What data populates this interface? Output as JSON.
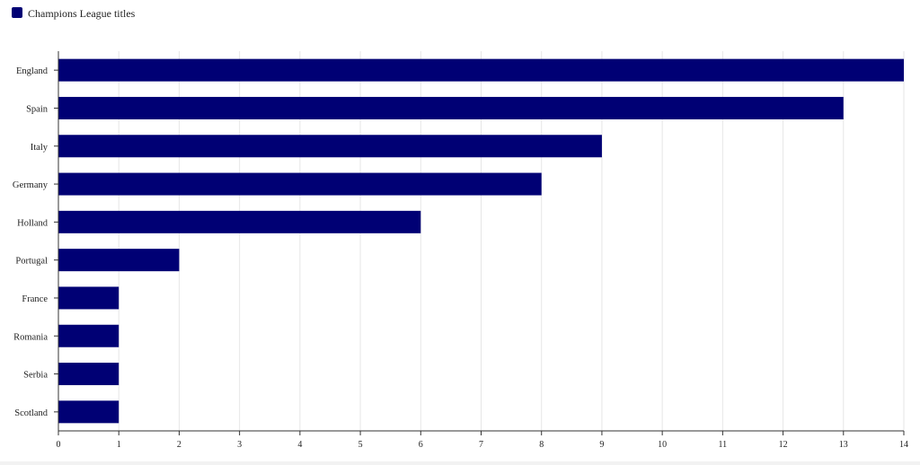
{
  "colors": {
    "bar": "#000074",
    "grid": "#e6e6e6",
    "axis": "#333333",
    "background": "#ffffff"
  },
  "chart_data": {
    "type": "bar",
    "orientation": "horizontal",
    "categories": [
      "England",
      "Spain",
      "Italy",
      "Germany",
      "Holland",
      "Portugal",
      "France",
      "Romania",
      "Serbia",
      "Scotland"
    ],
    "series": [
      {
        "name": "Champions League titles",
        "values": [
          14,
          13,
          9,
          8,
          6,
          2,
          1,
          1,
          1,
          1
        ]
      }
    ],
    "title": "",
    "xlabel": "",
    "ylabel": "",
    "xlim": [
      0,
      14
    ],
    "x_ticks": [
      "0",
      "1",
      "2",
      "3",
      "4",
      "5",
      "6",
      "7",
      "8",
      "9",
      "10",
      "11",
      "12",
      "13",
      "14"
    ],
    "grid": true,
    "legend_position": "top-left"
  }
}
